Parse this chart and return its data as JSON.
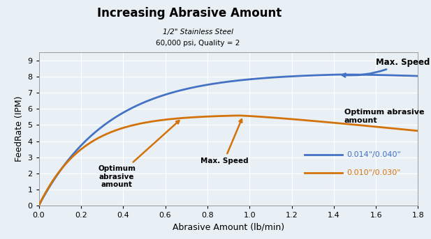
{
  "title": "Increasing Abrasive Amount",
  "subtitle1": "1/2\" Stainless Steel",
  "subtitle2": "60,000 psi, Quality = 2",
  "xlabel": "Abrasive Amount (lb/min)",
  "ylabel": "FeedRate (IPM)",
  "xlim": [
    0,
    1.8
  ],
  "ylim": [
    0,
    9.5
  ],
  "xticks": [
    0.0,
    0.2,
    0.4,
    0.6,
    0.8,
    1.0,
    1.2,
    1.4,
    1.6,
    1.8
  ],
  "yticks": [
    0,
    1,
    2,
    3,
    4,
    5,
    6,
    7,
    8,
    9
  ],
  "blue_color": "#4472C4",
  "orange_color": "#D4720A",
  "fig_bg_color": "#E8EFF5",
  "ax_bg_color": "#E8EFF5",
  "legend_blue_label": "0.014\"/0.040\"",
  "legend_orange_label": "0.010\"/0.030\""
}
